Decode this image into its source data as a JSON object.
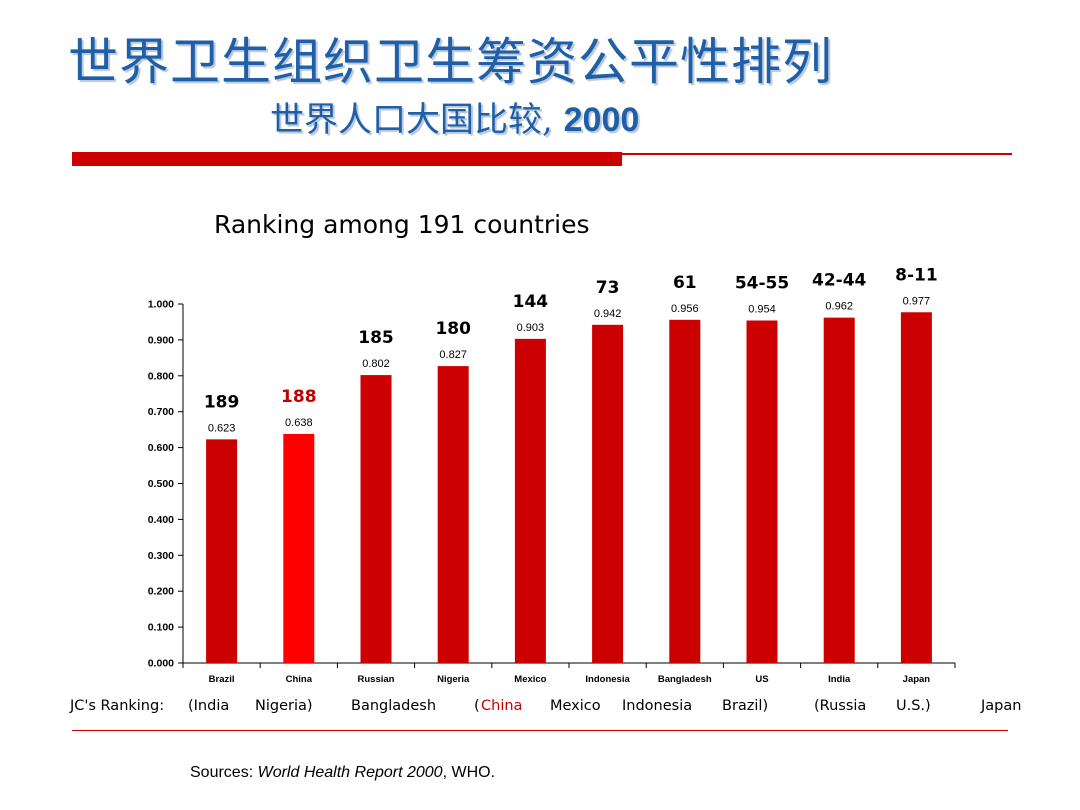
{
  "slide": {
    "title": "世界卫生组织卫生筹资公平性排列",
    "subtitle_prefix": "世界人口大国比较,",
    "subtitle_year": "2000",
    "caption": "Ranking among 191 countries"
  },
  "jc_ranking": {
    "label": "JC's Ranking:",
    "items": [
      "(India",
      "Nigeria)",
      "Bangladesh",
      "(",
      "China",
      "Mexico",
      "Indonesia",
      "Brazil)",
      "(Russia",
      "U.S.)",
      "Japan"
    ]
  },
  "sources": {
    "prefix": "Sources: ",
    "title": "World Health Report 2000",
    "suffix": ", WHO."
  },
  "colors": {
    "bar": "#cc0000",
    "bar_highlight": "#ff0000",
    "rank_highlight": "#c00000",
    "title": "#1f5fa8"
  },
  "chart_data": {
    "type": "bar",
    "categories": [
      "Brazil",
      "China",
      "Russian",
      "Nigeria",
      "Mexico",
      "Indonesia",
      "Bangladesh",
      "US",
      "India",
      "Japan"
    ],
    "values": [
      0.623,
      0.638,
      0.802,
      0.827,
      0.903,
      0.942,
      0.956,
      0.954,
      0.962,
      0.977
    ],
    "value_labels": [
      "0.623",
      "0.638",
      "0.802",
      "0.827",
      "0.903",
      "0.942",
      "0.956",
      "0.954",
      "0.962",
      "0.977"
    ],
    "rank_labels": [
      "189",
      "188",
      "185",
      "180",
      "144",
      "73",
      "61",
      "54-55",
      "42-44",
      "8-11"
    ],
    "highlight_index": 1,
    "ylim": [
      0,
      1
    ],
    "yticks": [
      "0.000",
      "0.100",
      "0.200",
      "0.300",
      "0.400",
      "0.500",
      "0.600",
      "0.700",
      "0.800",
      "0.900",
      "1.000"
    ],
    "title": "Ranking among 191 countries",
    "xlabel": "",
    "ylabel": "",
    "grid": false
  }
}
